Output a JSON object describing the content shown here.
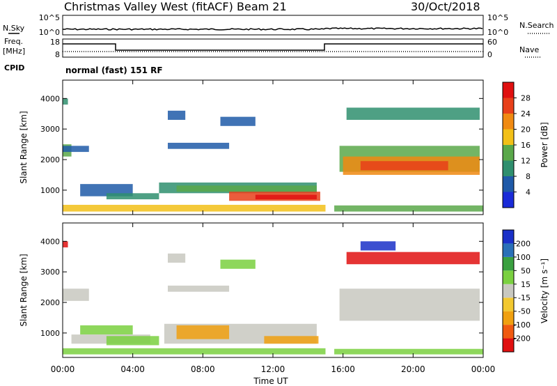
{
  "header": {
    "site": "Christmas Valley West (fitACF)",
    "beam": "Beam 21",
    "date": "30/Oct/2018"
  },
  "strip_nsky": {
    "left_label": "N.Sky",
    "left_ticks": [
      "10^5",
      "10^0"
    ],
    "right_label": "N.Search",
    "right_ticks": [
      "10^5",
      "10^0"
    ]
  },
  "strip_freq": {
    "left_label_1": "Freq.",
    "left_label_2": "[MHz]",
    "left_ticks": [
      "18",
      "8"
    ],
    "right_label": "Nave",
    "right_ticks": [
      "60",
      "0"
    ]
  },
  "strip_cpid": {
    "label": "CPID",
    "program": "normal (fast) 151 RF"
  },
  "chart_data": [
    {
      "type": "heatmap",
      "panel": "power",
      "ylabel": "Slant Range [km]",
      "y_ticks": [
        1000,
        2000,
        3000,
        4000
      ],
      "ylim": [
        200,
        4600
      ],
      "xlim_hours": [
        0,
        24
      ],
      "colorbar_label": "Power [dB]",
      "colorbar_ticks": [
        "4",
        "8",
        "12",
        "16",
        "20",
        "24",
        "28"
      ],
      "colors": [
        "#1a2bd8",
        "#1f5aa8",
        "#2f8f6e",
        "#5aa84a",
        "#f2c018",
        "#f08a12",
        "#e8401a",
        "#e01010"
      ],
      "blocks": [
        {
          "t0": 0.0,
          "t1": 0.5,
          "r0": 2100,
          "r1": 2500,
          "level": 3
        },
        {
          "t0": 0.0,
          "t1": 1.5,
          "r0": 2250,
          "r1": 2450,
          "level": 1
        },
        {
          "t0": 0.0,
          "t1": 0.3,
          "r0": 3800,
          "r1": 4000,
          "level": 2
        },
        {
          "t0": 6.0,
          "t1": 9.5,
          "r0": 2350,
          "r1": 2550,
          "level": 1
        },
        {
          "t0": 6.0,
          "t1": 7.0,
          "r0": 3300,
          "r1": 3600,
          "level": 1
        },
        {
          "t0": 9.0,
          "t1": 11.0,
          "r0": 3100,
          "r1": 3400,
          "level": 1
        },
        {
          "t0": 1.0,
          "t1": 4.0,
          "r0": 800,
          "r1": 1200,
          "level": 1
        },
        {
          "t0": 2.5,
          "t1": 5.5,
          "r0": 700,
          "r1": 900,
          "level": 2
        },
        {
          "t0": 5.5,
          "t1": 14.5,
          "r0": 900,
          "r1": 1250,
          "level": 2
        },
        {
          "t0": 6.5,
          "t1": 14.5,
          "r0": 950,
          "r1": 1150,
          "level": 3
        },
        {
          "t0": 9.5,
          "t1": 14.7,
          "r0": 650,
          "r1": 950,
          "level": 6
        },
        {
          "t0": 11.0,
          "t1": 14.5,
          "r0": 700,
          "r1": 850,
          "level": 7
        },
        {
          "t0": 0.0,
          "t1": 15.0,
          "r0": 300,
          "r1": 520,
          "level": 4
        },
        {
          "t0": 15.8,
          "t1": 23.8,
          "r0": 1600,
          "r1": 2450,
          "level": 3
        },
        {
          "t0": 16.0,
          "t1": 23.8,
          "r0": 1500,
          "r1": 2100,
          "level": 5
        },
        {
          "t0": 17.0,
          "t1": 22.0,
          "r0": 1650,
          "r1": 1950,
          "level": 6
        },
        {
          "t0": 16.2,
          "t1": 23.8,
          "r0": 3300,
          "r1": 3700,
          "level": 2
        },
        {
          "t0": 15.5,
          "t1": 24.0,
          "r0": 300,
          "r1": 500,
          "level": 3
        }
      ]
    },
    {
      "type": "heatmap",
      "panel": "velocity",
      "ylabel": "Slant Range [km]",
      "y_ticks": [
        1000,
        2000,
        3000,
        4000
      ],
      "ylim": [
        200,
        4600
      ],
      "xlim_hours": [
        0,
        24
      ],
      "x_ticks": [
        "00:00",
        "04:00",
        "08:00",
        "12:00",
        "16:00",
        "20:00",
        "00:00"
      ],
      "xlabel": "Time UT",
      "colorbar_label": "Velocity [m s⁻¹]",
      "colorbar_ticks": [
        "-200",
        "-100",
        "-50",
        "-15",
        "15",
        "50",
        "100",
        "200"
      ],
      "colors": [
        "#e01010",
        "#f05a10",
        "#f0a010",
        "#f2c830",
        "#c8c8c0",
        "#7ad040",
        "#3aa040",
        "#2a70b8",
        "#1a30c8"
      ],
      "blocks": [
        {
          "t0": 0.0,
          "t1": 1.5,
          "r0": 2050,
          "r1": 2450,
          "level": 4
        },
        {
          "t0": 0.0,
          "t1": 0.3,
          "r0": 3800,
          "r1": 4000,
          "level": 0
        },
        {
          "t0": 6.0,
          "t1": 9.5,
          "r0": 2350,
          "r1": 2550,
          "level": 4
        },
        {
          "t0": 6.0,
          "t1": 7.0,
          "r0": 3300,
          "r1": 3600,
          "level": 4
        },
        {
          "t0": 9.0,
          "t1": 11.0,
          "r0": 3100,
          "r1": 3400,
          "level": 5
        },
        {
          "t0": 1.0,
          "t1": 4.0,
          "r0": 950,
          "r1": 1250,
          "level": 5
        },
        {
          "t0": 0.5,
          "t1": 5.0,
          "r0": 650,
          "r1": 950,
          "level": 4
        },
        {
          "t0": 2.5,
          "t1": 5.5,
          "r0": 600,
          "r1": 900,
          "level": 5
        },
        {
          "t0": 5.8,
          "t1": 14.5,
          "r0": 650,
          "r1": 1300,
          "level": 4
        },
        {
          "t0": 6.5,
          "t1": 9.5,
          "r0": 800,
          "r1": 1250,
          "level": 2
        },
        {
          "t0": 11.5,
          "t1": 14.6,
          "r0": 650,
          "r1": 900,
          "level": 2
        },
        {
          "t0": 0.0,
          "t1": 15.0,
          "r0": 300,
          "r1": 500,
          "level": 5
        },
        {
          "t0": 15.8,
          "t1": 23.8,
          "r0": 1400,
          "r1": 2450,
          "level": 4
        },
        {
          "t0": 16.2,
          "t1": 23.8,
          "r0": 3250,
          "r1": 3650,
          "level": 0
        },
        {
          "t0": 17.0,
          "t1": 19.0,
          "r0": 3700,
          "r1": 4000,
          "level": 8
        },
        {
          "t0": 15.5,
          "t1": 24.0,
          "r0": 300,
          "r1": 480,
          "level": 5
        }
      ]
    }
  ]
}
